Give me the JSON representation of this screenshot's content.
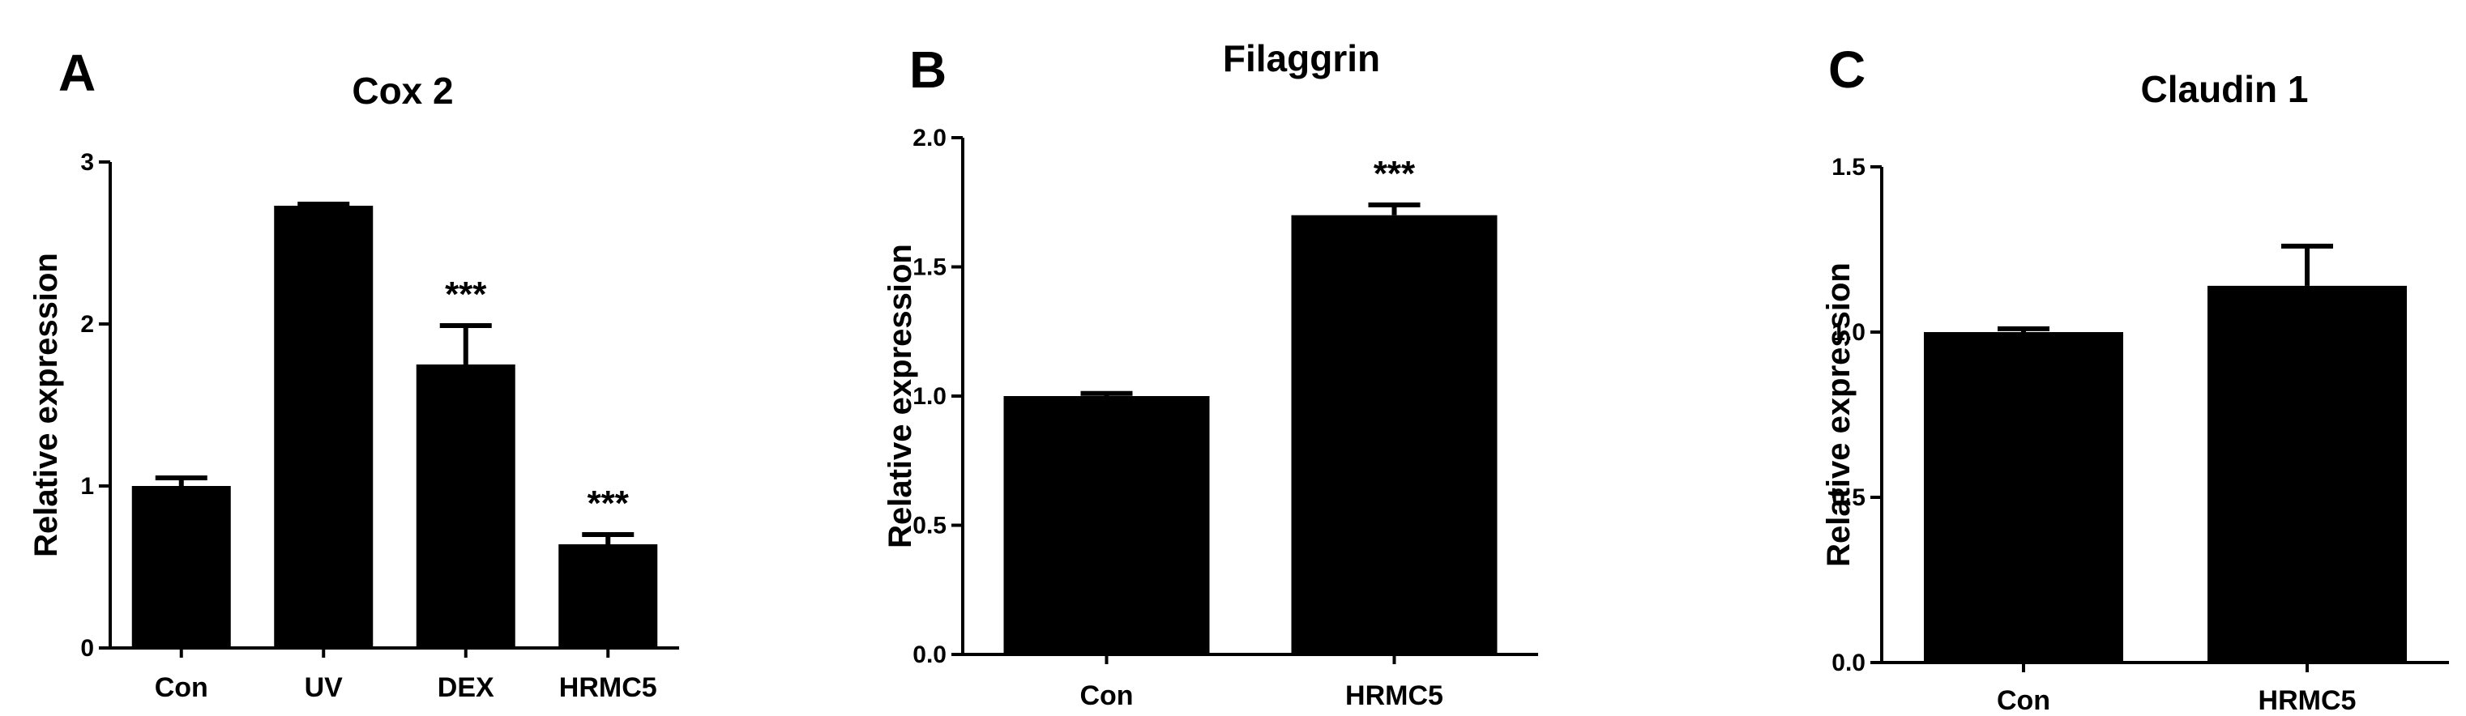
{
  "chart_data": [
    {
      "type": "bar",
      "panel": "A",
      "title": "Cox 2",
      "ylabel": "Relative expression",
      "xlabel": "",
      "ylim": [
        0,
        3
      ],
      "yticks": [
        0,
        1,
        2,
        3
      ],
      "ytick_labels": [
        "0",
        "1",
        "2",
        "3"
      ],
      "categories": [
        "Con",
        "UV",
        "DEX",
        "HRMC5"
      ],
      "values": [
        1.0,
        2.73,
        1.75,
        0.64
      ],
      "errors": [
        0.05,
        0.01,
        0.24,
        0.06
      ],
      "significance": [
        "",
        "",
        "***",
        "***"
      ],
      "color": "#000000",
      "grid": false
    },
    {
      "type": "bar",
      "panel": "B",
      "title": "Filaggrin",
      "ylabel": "Relative expression",
      "xlabel": "",
      "ylim": [
        0,
        2
      ],
      "yticks": [
        0,
        0.5,
        1,
        1.5,
        2
      ],
      "ytick_labels": [
        "0.0",
        "0.5",
        "1.0",
        "1.5",
        "2.0"
      ],
      "categories": [
        "Con",
        "HRMC5"
      ],
      "values": [
        1.0,
        1.7
      ],
      "errors": [
        0.01,
        0.04
      ],
      "significance": [
        "",
        "***"
      ],
      "color": "#000000",
      "grid": false
    },
    {
      "type": "bar",
      "panel": "C",
      "title": "Claudin 1",
      "ylabel": "Relative expression",
      "xlabel": "",
      "ylim": [
        0,
        1.5
      ],
      "yticks": [
        0,
        0.5,
        1,
        1.5
      ],
      "ytick_labels": [
        "0.0",
        "0.5",
        "1.0",
        "1.5"
      ],
      "categories": [
        "Con",
        "HRMC5"
      ],
      "values": [
        1.0,
        1.14
      ],
      "errors": [
        0.01,
        0.12
      ],
      "significance": [
        "",
        ""
      ],
      "color": "#000000",
      "grid": false
    }
  ]
}
